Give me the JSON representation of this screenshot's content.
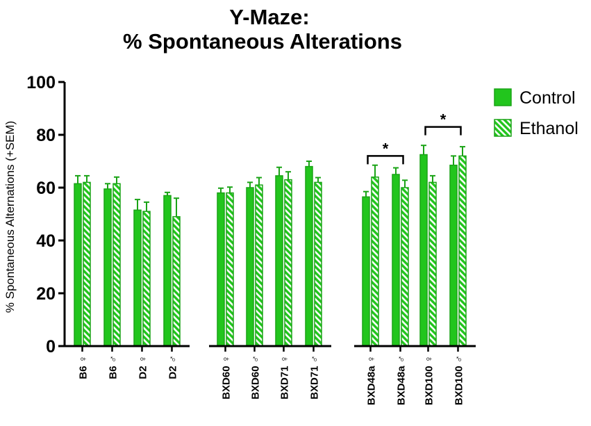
{
  "chart_data": {
    "type": "bar",
    "title_lines": [
      "Y-Maze:",
      "% Spontaneous Alterations"
    ],
    "ylabel": "% Spontaneous Alternations (+SEM)",
    "xlabel": "",
    "ylim": [
      0,
      100
    ],
    "yticks": [
      "0",
      "20",
      "40",
      "60",
      "80",
      "100"
    ],
    "categories": [
      "B6 ♀",
      "B6 ♂",
      "D2 ♀",
      "D2 ♂",
      "BXD60 ♀",
      "BXD60 ♂",
      "BXD71 ♀",
      "BXD71 ♂",
      "BXD48a ♀",
      "BXD48a ♂",
      "BXD100 ♀",
      "BXD100 ♂"
    ],
    "groups": [
      [
        0,
        1,
        2,
        3
      ],
      [
        4,
        5,
        6,
        7
      ],
      [
        8,
        9,
        10,
        11
      ]
    ],
    "series": [
      {
        "name": "Control",
        "pattern": "solid",
        "values": [
          61.5,
          59.5,
          51.5,
          57,
          58,
          60,
          64.5,
          68,
          56.5,
          65,
          72.5,
          68.5
        ],
        "sem": [
          3,
          2,
          4,
          1.2,
          1.8,
          2,
          3.2,
          2,
          2,
          2.5,
          3.5,
          3.5
        ]
      },
      {
        "name": "Ethanol",
        "pattern": "hatched",
        "values": [
          62,
          61.5,
          51,
          49,
          58,
          61,
          63,
          62,
          64,
          60,
          62,
          72
        ],
        "sem": [
          2.5,
          2.5,
          3.5,
          7,
          2.2,
          2.8,
          3,
          1.8,
          4.5,
          2.8,
          2.5,
          3.5
        ]
      }
    ],
    "significance": [
      {
        "from": 8,
        "to": 9,
        "y": 72,
        "label": "*"
      },
      {
        "from": 10,
        "to": 11,
        "y": 83,
        "label": "*"
      }
    ],
    "legend_position": "top-right",
    "grid": false,
    "colors": {
      "bar": "#22c51d",
      "bar_border": "#1aa316",
      "axis": "#000000"
    }
  }
}
